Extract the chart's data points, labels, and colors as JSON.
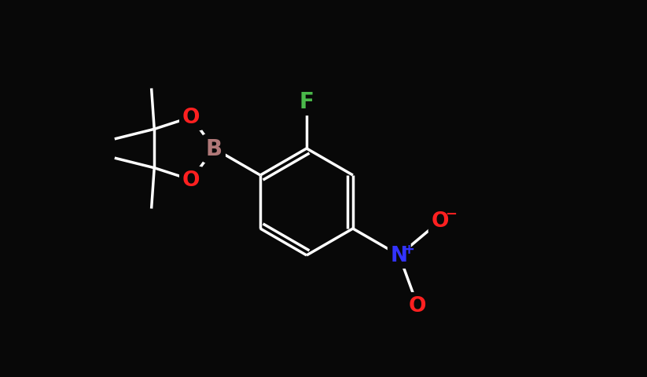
{
  "background_color": "#080808",
  "bond_color": "#ffffff",
  "atom_colors": {
    "F": "#4ab84a",
    "O": "#ff2020",
    "B": "#b07878",
    "N": "#3333ff",
    "C": "#ffffff"
  },
  "bond_width": 2.5,
  "figsize": [
    8.23,
    4.81
  ],
  "dpi": 100
}
